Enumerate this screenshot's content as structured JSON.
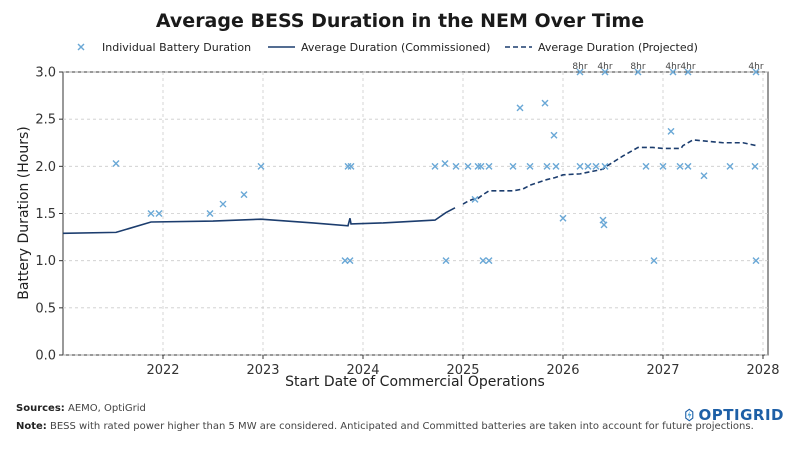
{
  "chart_data": {
    "type": "scatter",
    "title": "Average BESS Duration in the NEM Over Time",
    "xlabel": "Start Date of Commercial Operations",
    "ylabel": "Battery Duration (Hours)",
    "xlim": [
      2021.0,
      2028.05
    ],
    "ylim": [
      0,
      3.0
    ],
    "x_ticks": [
      "2022",
      "2023",
      "2024",
      "2025",
      "2026",
      "2027",
      "2028"
    ],
    "y_ticks": [
      "0.0",
      "0.5",
      "1.0",
      "1.5",
      "2.0",
      "2.5",
      "3.0"
    ],
    "grid": true,
    "legend": {
      "position": "top",
      "items": [
        "Individual Battery Duration",
        "Average Duration (Commissioned)",
        "Average Duration (Projected)"
      ]
    },
    "series": [
      {
        "name": "Individual Battery Duration",
        "type": "scatter",
        "color": "#6aa8d6",
        "x": [
          2021.53,
          2021.88,
          2021.96,
          2022.47,
          2022.6,
          2022.81,
          2022.98,
          2023.82,
          2023.85,
          2023.87,
          2023.88,
          2024.72,
          2024.82,
          2024.83,
          2024.93,
          2025.05,
          2025.12,
          2025.15,
          2025.18,
          2025.2,
          2025.26,
          2025.26,
          2025.5,
          2025.57,
          2025.67,
          2025.82,
          2025.84,
          2025.91,
          2025.93,
          2026.0,
          2026.17,
          2026.25,
          2026.33,
          2026.4,
          2026.41,
          2026.42,
          2026.83,
          2026.91,
          2027.0,
          2027.08,
          2027.17,
          2027.25,
          2027.41,
          2027.67,
          2027.92,
          2027.93
        ],
        "y": [
          2.03,
          1.5,
          1.5,
          1.5,
          1.6,
          1.7,
          2.0,
          1.0,
          2.0,
          1.0,
          2.0,
          2.0,
          2.03,
          1.0,
          2.0,
          2.0,
          1.65,
          2.0,
          2.0,
          1.0,
          2.0,
          1.0,
          2.0,
          2.62,
          2.0,
          2.67,
          2.0,
          2.33,
          2.0,
          1.45,
          2.0,
          2.0,
          2.0,
          1.43,
          1.38,
          2.0,
          2.0,
          1.0,
          2.0,
          2.37,
          2.0,
          2.0,
          1.9,
          2.0,
          2.0,
          1.0
        ]
      },
      {
        "name": "Average Duration (Commissioned)",
        "type": "line",
        "color": "#1c3d6e",
        "x": [
          2021.0,
          2021.53,
          2021.88,
          2022.5,
          2022.98,
          2023.5,
          2023.85,
          2023.87,
          2023.88,
          2024.2,
          2024.72,
          2024.83,
          2024.92
        ],
        "y": [
          1.29,
          1.3,
          1.41,
          1.42,
          1.44,
          1.4,
          1.37,
          1.45,
          1.39,
          1.4,
          1.43,
          1.51,
          1.56
        ]
      },
      {
        "name": "Average Duration (Projected)",
        "type": "line",
        "color": "#1c3d6e",
        "x": [
          2025.0,
          2025.05,
          2025.12,
          2025.15,
          2025.2,
          2025.26,
          2025.5,
          2025.6,
          2025.67,
          2025.84,
          2025.92,
          2026.0,
          2026.17,
          2026.4,
          2026.45,
          2026.6,
          2026.75,
          2026.9,
          2027.0,
          2027.18,
          2027.2,
          2027.3,
          2027.5,
          2027.6,
          2027.8,
          2027.93
        ],
        "y": [
          1.6,
          1.63,
          1.66,
          1.66,
          1.7,
          1.74,
          1.74,
          1.76,
          1.8,
          1.86,
          1.88,
          1.91,
          1.92,
          1.97,
          2.01,
          2.11,
          2.2,
          2.2,
          2.19,
          2.19,
          2.22,
          2.28,
          2.26,
          2.25,
          2.25,
          2.22
        ]
      }
    ],
    "overflow_points": [
      {
        "x": 2026.17,
        "label": "8hr"
      },
      {
        "x": 2026.42,
        "label": "4hr"
      },
      {
        "x": 2026.75,
        "label": "8hr"
      },
      {
        "x": 2027.1,
        "label": "4hr"
      },
      {
        "x": 2027.25,
        "label": "4hr"
      },
      {
        "x": 2027.93,
        "label": "4hr"
      }
    ]
  },
  "footer": {
    "sources_label": "Sources:",
    "sources_text": "AEMO, OptiGrid",
    "note_label": "Note:",
    "note_text": "BESS with rated power higher than 5 MW are considered. Anticipated and Committed batteries are taken into account for future projections."
  },
  "logo": {
    "text": "OPTIGRID"
  }
}
